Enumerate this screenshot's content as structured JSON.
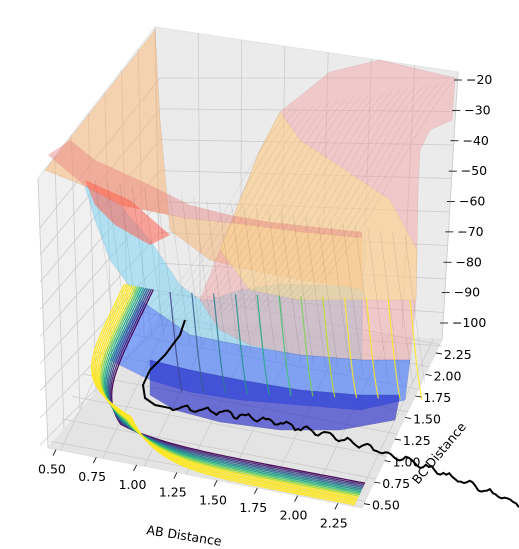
{
  "chart_data": {
    "type": "surface3d",
    "title": "",
    "xlabel": "AB Distance",
    "ylabel": "BC Distance",
    "zlabel": "",
    "x_ticks": [
      "0.50",
      "0.75",
      "1.00",
      "1.25",
      "1.50",
      "1.75",
      "2.00",
      "2.25"
    ],
    "y_ticks": [
      "0.50",
      "0.75",
      "1.00",
      "1.25",
      "1.50",
      "1.75",
      "2.00",
      "2.25"
    ],
    "z_ticks": [
      "−20",
      "−30",
      "−40",
      "−50",
      "−60",
      "−70",
      "−80",
      "−90",
      "−100"
    ],
    "x_range": [
      0.4,
      2.4
    ],
    "y_range": [
      0.4,
      2.4
    ],
    "z_range": [
      -105,
      -20
    ],
    "surface_colormap": "jet",
    "surface_alpha": 0.35,
    "contour_colormap": "viridis",
    "contour_levels": [
      -100,
      -95,
      -90,
      -85,
      -80,
      -75,
      -70,
      -65,
      -60,
      -55,
      -50,
      -45,
      -40,
      -35,
      -30,
      -25
    ],
    "trajectory_color": "#000000",
    "grid": true
  }
}
